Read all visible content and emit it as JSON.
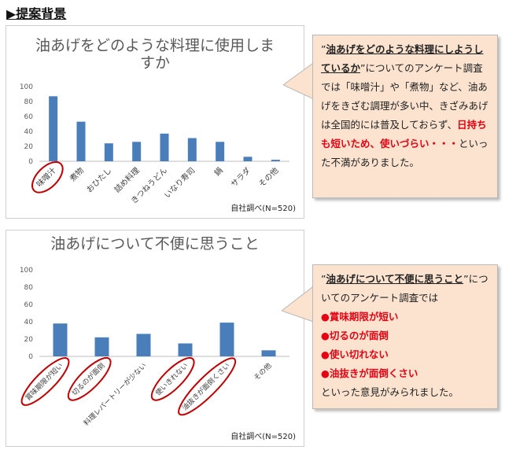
{
  "heading": "▶提案背景",
  "colors": {
    "bar": "#4a7ebb",
    "highlight": "#c00000",
    "callout_bg": "#fbe3cf",
    "red_text": "#e60012"
  },
  "chart1": {
    "title_line1": "油あげをどのような料理に使用しま",
    "title_line2": "すか",
    "source": "自社調べ(N=520)"
  },
  "chart2": {
    "title": "油あげについて不便に思うこと",
    "unit": "(%)",
    "source": "自社調べ(N=520)"
  },
  "callout1": {
    "q_open": "”",
    "q_bold": "油あげをどのような料理にしようしているか",
    "q_close": "”",
    "t1": "についてのアンケート調査では「味噌汁」や「煮物」など、油あげをきざむ調理が多い中、きざみあげは全国的には普及しておらず、",
    "red": "日持ちも短いため、使いづらい・・・",
    "t2": "といった不満がありました。"
  },
  "callout2": {
    "q_open": "”",
    "q_bold": "油あげについて不便に思うこと",
    "q_close": "”",
    "t1": "についてのアンケート調査では",
    "bullets": [
      "●賞味期限が短い",
      "●切るのが面倒",
      "●使い切れない",
      "●油抜きが面倒くさい"
    ],
    "t2": "といった意見がみられました。"
  },
  "chart_data": [
    {
      "type": "bar",
      "title": "油あげをどのような料理に使用しますか",
      "categories": [
        "味噌汁",
        "煮物",
        "おひたし",
        "詰め料理",
        "きつねうどん",
        "いなり寿司",
        "鍋",
        "サラダ",
        "その他"
      ],
      "values": [
        87,
        53,
        24,
        26,
        37,
        31,
        26,
        6,
        2
      ],
      "ylim": [
        0,
        100
      ],
      "yticks": [
        0,
        20,
        40,
        60,
        80,
        100
      ],
      "grid": false,
      "circled": [
        "味噌汁"
      ]
    },
    {
      "type": "bar",
      "title": "油あげについて不便に思うこと",
      "ylabel": "(%)",
      "categories": [
        "賞味期限が短い",
        "切るのが面倒",
        "料理レパートリーが少ない",
        "使いきれない",
        "油抜きが面倒くさい",
        "その他"
      ],
      "values": [
        38,
        22,
        26,
        15,
        39,
        7
      ],
      "ylim": [
        0,
        100
      ],
      "yticks": [
        0,
        20,
        40,
        60,
        80,
        100
      ],
      "grid": false,
      "circled": [
        "賞味期限が短い",
        "切るのが面倒",
        "使いきれない",
        "油抜きが面倒くさい"
      ]
    }
  ]
}
